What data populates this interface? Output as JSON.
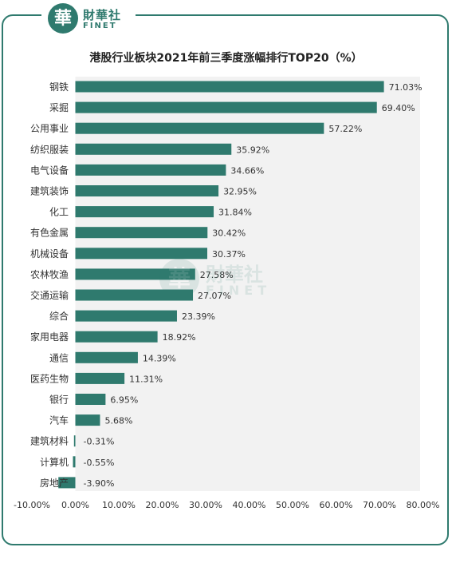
{
  "brand": {
    "logo_glyph": "華",
    "name_cn": "財華社",
    "name_en": "FINET"
  },
  "chart_data": {
    "type": "bar",
    "orientation": "horizontal",
    "title": "港股行业板块2021年前三季度涨幅排行TOP20（%）",
    "categories": [
      "钢铁",
      "采掘",
      "公用事业",
      "纺织服装",
      "电气设备",
      "建筑装饰",
      "化工",
      "有色金属",
      "机械设备",
      "农林牧渔",
      "交通运输",
      "综合",
      "家用电器",
      "通信",
      "医药生物",
      "银行",
      "汽车",
      "建筑材料",
      "计算机",
      "房地产"
    ],
    "values": [
      71.03,
      69.4,
      57.22,
      35.92,
      34.66,
      32.95,
      31.84,
      30.42,
      30.37,
      27.58,
      27.07,
      23.39,
      18.92,
      14.39,
      11.31,
      6.95,
      5.68,
      -0.31,
      -0.55,
      -3.9
    ],
    "value_labels": [
      "71.03%",
      "69.40%",
      "57.22%",
      "35.92%",
      "34.66%",
      "32.95%",
      "31.84%",
      "30.42%",
      "30.37%",
      "27.58%",
      "27.07%",
      "23.39%",
      "18.92%",
      "14.39%",
      "11.31%",
      "6.95%",
      "5.68%",
      "-0.31%",
      "-0.55%",
      "-3.90%"
    ],
    "x_ticks": [
      -10,
      0,
      10,
      20,
      30,
      40,
      50,
      60,
      70,
      80
    ],
    "x_tick_labels": [
      "-10.00%",
      "0.00%",
      "10.00%",
      "20.00%",
      "30.00%",
      "40.00%",
      "50.00%",
      "60.00%",
      "70.00%",
      "80.00%"
    ],
    "xlim": [
      -10,
      80
    ],
    "bar_color": "#2f7a6e",
    "plot_background": "#f2f2f2",
    "grid": false,
    "legend": "none"
  }
}
